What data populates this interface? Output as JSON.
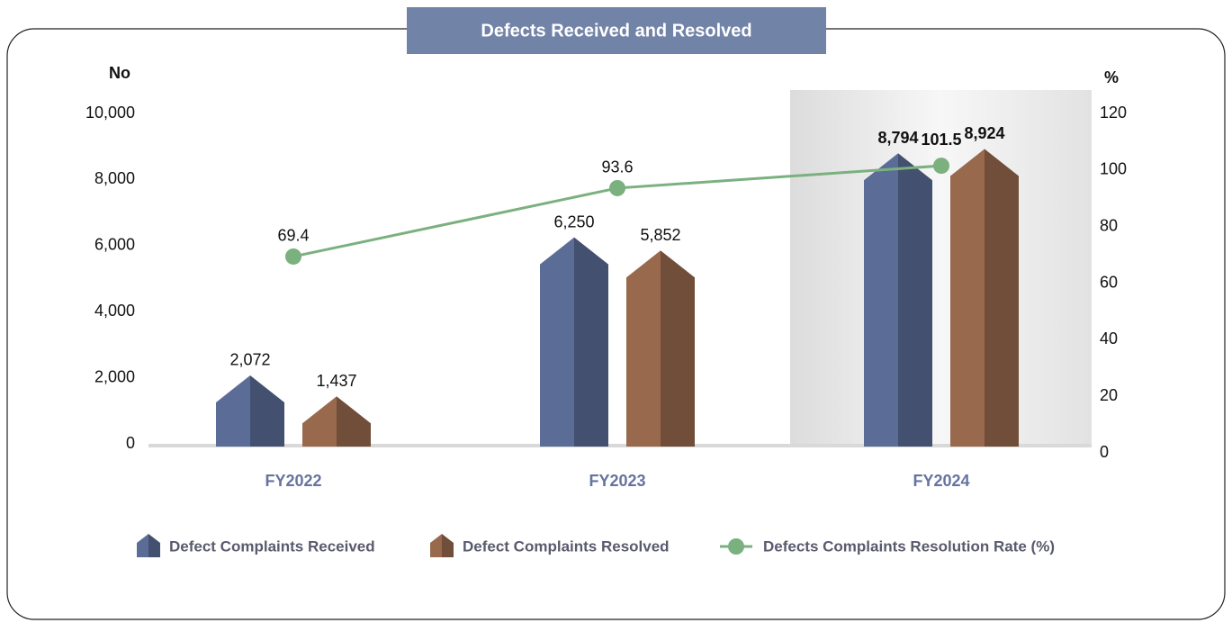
{
  "chart_data": {
    "type": "bar",
    "title": "Defects Received and Resolved",
    "y_label": "No",
    "y2_label": "%",
    "categories": [
      "FY2022",
      "FY2023",
      "FY2024"
    ],
    "series": [
      {
        "name": "Defect Complaints Received",
        "color": "#5b6c96",
        "values": [
          2072,
          6250,
          8794
        ],
        "value_labels": [
          "2,072",
          "6,250",
          "8,794"
        ]
      },
      {
        "name": "Defect Complaints Resolved",
        "color": "#98694d",
        "values": [
          1437,
          5852,
          8924
        ],
        "value_labels": [
          "1,437",
          "5,852",
          "8,924"
        ]
      },
      {
        "name": "Defects Complaints Resolution Rate (%)",
        "type": "line",
        "axis": "y2",
        "color": "#7bb07f",
        "values": [
          69.4,
          93.6,
          101.5
        ]
      }
    ],
    "ylim": [
      0,
      10000
    ],
    "yticks": [
      0,
      {
        "value": 2000,
        "label": "2,000"
      },
      {
        "value": 4000,
        "label": "4,000"
      },
      {
        "value": 6000,
        "label": "6,000"
      },
      {
        "value": 8000,
        "label": "8,000"
      },
      {
        "value": 10000,
        "label": "10,000"
      }
    ],
    "y2lim": [
      0,
      120
    ],
    "y2ticks": [
      0,
      20,
      40,
      60,
      80,
      100,
      120
    ],
    "legend": "bottom"
  }
}
